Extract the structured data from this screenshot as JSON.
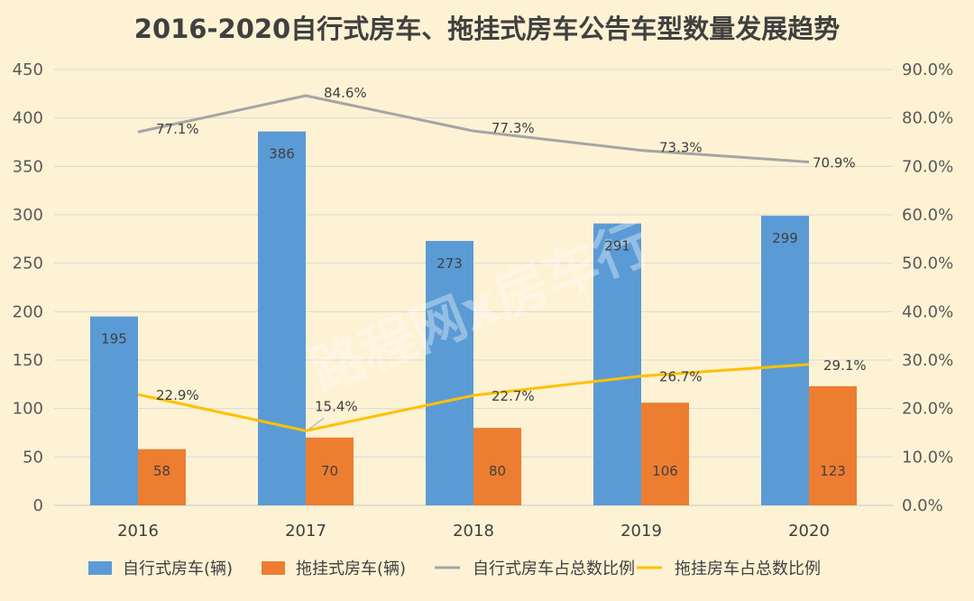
{
  "chart_data": {
    "type": "bar",
    "title": "2016-2020自行式房车、拖挂式房车公告车型数量发展趋势",
    "categories": [
      "2016",
      "2017",
      "2018",
      "2019",
      "2020"
    ],
    "series": [
      {
        "name": "自行式房车(辆)",
        "kind": "bar",
        "axis": "left",
        "color": "#5b9bd5",
        "values": [
          195,
          386,
          273,
          291,
          299
        ]
      },
      {
        "name": "拖挂式房车(辆)",
        "kind": "bar",
        "axis": "left",
        "color": "#ed7d31",
        "values": [
          58,
          70,
          80,
          106,
          123
        ]
      },
      {
        "name": "自行式房车占总数比例",
        "kind": "line",
        "axis": "right",
        "color": "#a5a5a5",
        "values": [
          77.1,
          84.6,
          77.3,
          73.3,
          70.9
        ],
        "labels": [
          "77.1%",
          "84.6%",
          "77.3%",
          "73.3%",
          "70.9%"
        ]
      },
      {
        "name": "拖挂房车占总数比例",
        "kind": "line",
        "axis": "right",
        "color": "#ffc000",
        "values": [
          22.9,
          15.4,
          22.7,
          26.7,
          29.1
        ],
        "labels": [
          "22.9%",
          "15.4%",
          "22.7%",
          "26.7%",
          "29.1%"
        ]
      }
    ],
    "y_left": {
      "min": 0,
      "max": 450,
      "ticks": [
        "0",
        "50",
        "100",
        "150",
        "200",
        "250",
        "300",
        "350",
        "400",
        "450"
      ]
    },
    "y_right": {
      "min": 0,
      "max": 90,
      "ticks": [
        "0.0%",
        "10.0%",
        "20.0%",
        "30.0%",
        "40.0%",
        "50.0%",
        "60.0%",
        "70.0%",
        "80.0%",
        "90.0%"
      ]
    },
    "grid": true,
    "legend_position": "bottom",
    "watermark": "路程网x房车行"
  }
}
